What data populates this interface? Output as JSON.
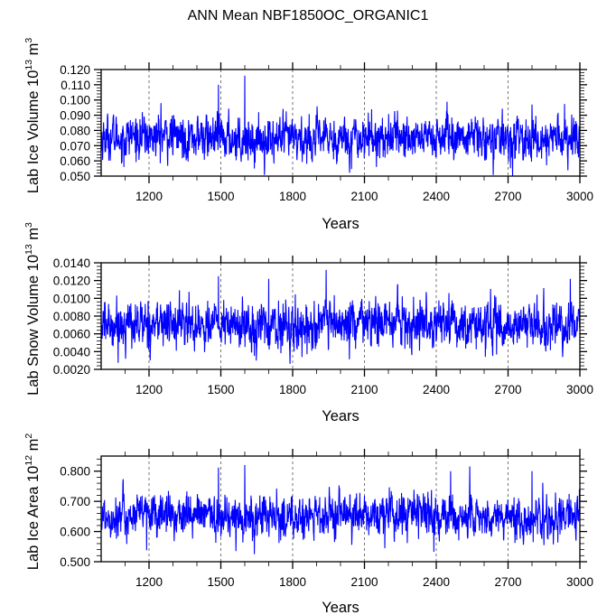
{
  "figure_title": "ANN Mean NBF1850OC_ORGANIC1",
  "chart_data": [
    {
      "type": "line",
      "title": "ANN Mean NBF1850OC_ORGANIC1",
      "ylabel": {
        "main": "Lab Ice Volume 10",
        "exp": "13",
        "unit": " m",
        "unit_exp": "3"
      },
      "xlabel": "Years",
      "xlim": [
        1000,
        3000
      ],
      "ylim": [
        0.05,
        0.12
      ],
      "x_ticks": [
        1200,
        1500,
        1800,
        2100,
        2400,
        2700,
        3000
      ],
      "x_tick_labels": [
        "1200",
        "1500",
        "1800",
        "2100",
        "2400",
        "2700",
        "3000"
      ],
      "y_ticks": [
        0.05,
        0.06,
        0.07,
        0.08,
        0.09,
        0.1,
        0.11,
        0.12
      ],
      "y_tick_labels": [
        "0.050",
        "0.060",
        "0.070",
        "0.080",
        "0.090",
        "0.100",
        "0.110",
        "0.120"
      ],
      "grid": "vertical dashed at major x ticks",
      "line_color": "#0000ff",
      "series": {
        "name": "Lab Ice Volume",
        "mean": 0.075,
        "std": 0.007,
        "min": 0.055,
        "max": 0.116,
        "peaks": [
          [
            1490,
            0.11
          ],
          [
            1600,
            0.116
          ],
          [
            1250,
            0.098
          ],
          [
            2800,
            0.097
          ]
        ],
        "troughs": [
          [
            1095,
            0.056
          ],
          [
            1640,
            0.055
          ],
          [
            2150,
            0.056
          ]
        ]
      }
    },
    {
      "type": "line",
      "ylabel": {
        "main": "Lab Snow Volume 10",
        "exp": "13",
        "unit": " m",
        "unit_exp": "3"
      },
      "xlabel": "Years",
      "xlim": [
        1000,
        3000
      ],
      "ylim": [
        0.002,
        0.014
      ],
      "x_ticks": [
        1200,
        1500,
        1800,
        2100,
        2400,
        2700,
        3000
      ],
      "x_tick_labels": [
        "1200",
        "1500",
        "1800",
        "2100",
        "2400",
        "2700",
        "3000"
      ],
      "y_ticks": [
        0.002,
        0.004,
        0.006,
        0.008,
        0.01,
        0.012,
        0.014
      ],
      "y_tick_labels": [
        "0.0020",
        "0.0040",
        "0.0060",
        "0.0080",
        "0.0100",
        "0.0120",
        "0.0140"
      ],
      "grid": "vertical dashed at major x ticks",
      "line_color": "#0000ff",
      "series": {
        "name": "Lab Snow Volume",
        "mean": 0.007,
        "std": 0.0013,
        "min": 0.0037,
        "max": 0.0132,
        "peaks": [
          [
            1490,
            0.0125
          ],
          [
            1700,
            0.0122
          ],
          [
            1940,
            0.0132
          ],
          [
            2960,
            0.0122
          ]
        ],
        "troughs": [
          [
            1390,
            0.004
          ],
          [
            1860,
            0.0037
          ],
          [
            2330,
            0.0041
          ]
        ]
      }
    },
    {
      "type": "line",
      "ylabel": {
        "main": "Lab Ice Area 10",
        "exp": "12",
        "unit": " m",
        "unit_exp": "2"
      },
      "xlabel": "Years",
      "xlim": [
        1000,
        3000
      ],
      "ylim": [
        0.5,
        0.85
      ],
      "x_ticks": [
        1200,
        1500,
        1800,
        2100,
        2400,
        2700,
        3000
      ],
      "x_tick_labels": [
        "1200",
        "1500",
        "1800",
        "2100",
        "2400",
        "2700",
        "3000"
      ],
      "y_ticks": [
        0.5,
        0.6,
        0.7,
        0.8
      ],
      "y_tick_labels": [
        "0.500",
        "0.600",
        "0.700",
        "0.800"
      ],
      "grid": "vertical dashed at major x ticks",
      "line_color": "#0000ff",
      "series": {
        "name": "Lab Ice Area",
        "mean": 0.65,
        "std": 0.035,
        "min": 0.525,
        "max": 0.82,
        "peaks": [
          [
            1490,
            0.812
          ],
          [
            1600,
            0.82
          ],
          [
            2460,
            0.8
          ],
          [
            2800,
            0.8
          ]
        ],
        "troughs": [
          [
            1190,
            0.538
          ],
          [
            1640,
            0.525
          ],
          [
            2390,
            0.533
          ]
        ]
      }
    }
  ]
}
